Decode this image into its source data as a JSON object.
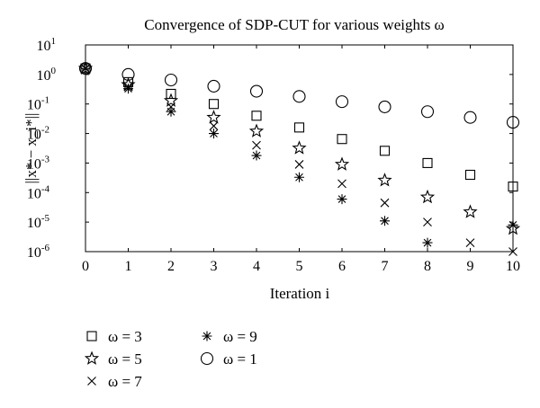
{
  "chart_data": {
    "type": "scatter",
    "title": "Convergence of SDP-CUT for various weights ω",
    "xlabel": "Iteration i",
    "ylabel": "||x* − x_i*||",
    "xlim": [
      0,
      10
    ],
    "ylim_log10": [
      -6,
      1
    ],
    "y_scale": "log",
    "x_ticks": [
      "0",
      "1",
      "2",
      "3",
      "4",
      "5",
      "6",
      "7",
      "8",
      "9",
      "10"
    ],
    "y_ticks": [
      {
        "base": "10",
        "exp": "1"
      },
      {
        "base": "10",
        "exp": "0"
      },
      {
        "base": "10",
        "exp": "-1"
      },
      {
        "base": "10",
        "exp": "-2"
      },
      {
        "base": "10",
        "exp": "-3"
      },
      {
        "base": "10",
        "exp": "-4"
      },
      {
        "base": "10",
        "exp": "-5"
      },
      {
        "base": "10",
        "exp": "-6"
      }
    ],
    "grid": false,
    "legend_position": "below-left",
    "series": [
      {
        "name": "ω = 3",
        "marker": "square",
        "x": [
          0,
          1,
          2,
          3,
          4,
          5,
          6,
          7,
          8,
          9,
          10
        ],
        "y": [
          1.6,
          0.55,
          0.22,
          0.1,
          0.04,
          0.016,
          0.0065,
          0.0026,
          0.001,
          0.0004,
          0.00016
        ]
      },
      {
        "name": "ω = 5",
        "marker": "star",
        "x": [
          0,
          1,
          2,
          3,
          4,
          5,
          6,
          7,
          8,
          9,
          10
        ],
        "y": [
          1.6,
          0.45,
          0.13,
          0.035,
          0.012,
          0.0032,
          0.0009,
          0.00026,
          7e-05,
          2.2e-05,
          6e-06
        ]
      },
      {
        "name": "ω = 7",
        "marker": "x",
        "x": [
          0,
          1,
          2,
          3,
          4,
          5,
          6,
          7,
          8,
          9,
          10
        ],
        "y": [
          1.6,
          0.38,
          0.08,
          0.018,
          0.004,
          0.0009,
          0.0002,
          4.5e-05,
          1e-05,
          2e-06,
          1e-06
        ]
      },
      {
        "name": "ω = 9",
        "marker": "asterisk",
        "x": [
          0,
          1,
          2,
          3,
          4,
          5,
          6,
          7,
          8,
          9,
          10
        ],
        "y": [
          1.6,
          0.33,
          0.055,
          0.01,
          0.0018,
          0.00033,
          6e-05,
          1.1e-05,
          2e-06,
          null,
          8e-06
        ]
      },
      {
        "name": "ω = 1",
        "marker": "circle",
        "x": [
          0,
          1,
          2,
          3,
          4,
          5,
          6,
          7,
          8,
          9,
          10
        ],
        "y": [
          1.6,
          1.0,
          0.65,
          0.4,
          0.27,
          0.18,
          0.12,
          0.08,
          0.055,
          0.035,
          0.024
        ]
      }
    ],
    "legend_rows": [
      [
        "ω = 3",
        "ω = 9"
      ],
      [
        "ω = 5",
        "ω = 1"
      ],
      [
        "ω = 7"
      ]
    ]
  }
}
